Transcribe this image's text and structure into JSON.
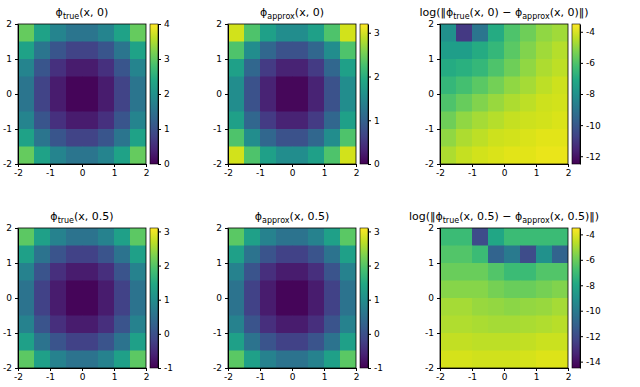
{
  "chart_data": [
    {
      "type": "heatmap",
      "title": [
        "ϕ",
        "true",
        "(x, 0)"
      ],
      "color": "viridis",
      "x": [
        -1.75,
        -1.25,
        -0.75,
        -0.25,
        0.25,
        0.75,
        1.25,
        1.75
      ],
      "y": [
        1.75,
        1.25,
        0.75,
        0.25,
        -0.25,
        -0.75,
        -1.25,
        -1.75
      ],
      "cells": [
        [
          3.06,
          2.31,
          1.81,
          1.56,
          1.56,
          1.81,
          2.31,
          3.06
        ],
        [
          2.31,
          1.56,
          1.06,
          0.81,
          0.81,
          1.06,
          1.56,
          2.31
        ],
        [
          1.81,
          1.06,
          0.56,
          0.31,
          0.31,
          0.56,
          1.06,
          1.81
        ],
        [
          1.56,
          0.81,
          0.31,
          0.06,
          0.06,
          0.31,
          0.81,
          1.56
        ],
        [
          1.56,
          0.81,
          0.31,
          0.06,
          0.06,
          0.31,
          0.81,
          1.56
        ],
        [
          1.81,
          1.06,
          0.56,
          0.31,
          0.31,
          0.56,
          1.06,
          1.81
        ],
        [
          2.31,
          1.56,
          1.06,
          0.81,
          0.81,
          1.06,
          1.56,
          2.31
        ],
        [
          3.06,
          2.31,
          1.81,
          1.56,
          1.56,
          1.81,
          2.31,
          3.06
        ]
      ],
      "xlim": [
        -2,
        2
      ],
      "ylim": [
        -2,
        2
      ],
      "xticks": [
        -2,
        -1,
        0,
        1,
        2
      ],
      "yticks": [
        -2,
        -1,
        0,
        1,
        2
      ],
      "colorbar": {
        "range": [
          0,
          4
        ],
        "ticks": [
          0,
          1,
          2,
          3,
          4
        ]
      }
    },
    {
      "type": "heatmap",
      "title": [
        "ϕ",
        "approx",
        "(x, 0)"
      ],
      "color": "viridis",
      "x": [
        -1.75,
        -1.25,
        -0.75,
        -0.25,
        0.25,
        0.75,
        1.25,
        1.75
      ],
      "y": [
        1.75,
        1.25,
        0.75,
        0.25,
        -0.25,
        -0.75,
        -1.25,
        -1.75
      ],
      "cells": [
        [
          2.98,
          2.3,
          1.8,
          1.55,
          1.55,
          1.8,
          2.3,
          2.98
        ],
        [
          2.3,
          1.56,
          1.06,
          0.81,
          0.81,
          1.06,
          1.56,
          2.3
        ],
        [
          1.8,
          1.06,
          0.56,
          0.31,
          0.31,
          0.56,
          1.06,
          1.8
        ],
        [
          1.55,
          0.81,
          0.31,
          0.06,
          0.06,
          0.31,
          0.81,
          1.55
        ],
        [
          1.55,
          0.81,
          0.31,
          0.06,
          0.06,
          0.31,
          0.81,
          1.55
        ],
        [
          1.8,
          1.06,
          0.56,
          0.31,
          0.31,
          0.56,
          1.06,
          1.8
        ],
        [
          2.3,
          1.56,
          1.06,
          0.81,
          0.81,
          1.06,
          1.56,
          2.3
        ],
        [
          2.98,
          2.3,
          1.8,
          1.55,
          1.55,
          1.8,
          2.3,
          2.98
        ]
      ],
      "xlim": [
        -2,
        2
      ],
      "ylim": [
        -2,
        2
      ],
      "xticks": [
        -2,
        -1,
        0,
        1,
        2
      ],
      "yticks": [
        -2,
        -1,
        0,
        1,
        2
      ],
      "colorbar": {
        "range": [
          0,
          3.2
        ],
        "ticks": [
          0,
          1,
          2,
          3
        ]
      }
    },
    {
      "type": "heatmap",
      "title": [
        "log(‖ϕ",
        "true",
        "(x, 0) − ϕ",
        "approx",
        "(x, 0)‖)"
      ],
      "color": "viridis",
      "x": [
        -1.75,
        -1.25,
        -0.75,
        -0.25,
        0.25,
        0.75,
        1.25,
        1.75
      ],
      "y": [
        1.75,
        1.25,
        0.75,
        0.25,
        -0.25,
        -0.75,
        -1.25,
        -1.75
      ],
      "cells": [
        [
          -8,
          -11,
          -9,
          -7,
          -6,
          -5.5,
          -5,
          -4.8
        ],
        [
          -7.5,
          -7.5,
          -7,
          -6.5,
          -5.8,
          -5.2,
          -4.8,
          -4.5
        ],
        [
          -7,
          -6.8,
          -6.5,
          -6,
          -5.5,
          -5,
          -4.6,
          -4.4
        ],
        [
          -6.5,
          -6.2,
          -5.8,
          -5.4,
          -5,
          -4.7,
          -4.4,
          -4.2
        ],
        [
          -6,
          -5.6,
          -5.2,
          -4.9,
          -4.6,
          -4.4,
          -4.2,
          -4.1
        ],
        [
          -5.5,
          -5,
          -4.7,
          -4.5,
          -4.3,
          -4.2,
          -4.1,
          -4
        ],
        [
          -5,
          -4.6,
          -4.4,
          -4.2,
          -4.1,
          -4,
          -3.9,
          -3.9
        ],
        [
          -4.6,
          -4.3,
          -4.1,
          -4,
          -3.9,
          -3.9,
          -3.8,
          -3.8
        ]
      ],
      "xlim": [
        -2,
        2
      ],
      "ylim": [
        -2,
        2
      ],
      "xticks": [
        -2,
        -1,
        0,
        1,
        2
      ],
      "yticks": [
        -2,
        -1,
        0,
        1,
        2
      ],
      "colorbar": {
        "range": [
          -12.5,
          -3.5
        ],
        "ticks": [
          -4,
          -6,
          -8,
          -10,
          -12
        ]
      }
    },
    {
      "type": "heatmap",
      "title": [
        "ϕ",
        "true",
        "(x, 0.5)"
      ],
      "color": "viridis",
      "x": [
        -1.75,
        -1.25,
        -0.75,
        -0.25,
        0.25,
        0.75,
        1.25,
        1.75
      ],
      "y": [
        1.75,
        1.25,
        0.75,
        0.25,
        -0.25,
        -0.75,
        -1.25,
        -1.75
      ],
      "cells": [
        [
          2.06,
          1.31,
          0.81,
          0.56,
          0.56,
          0.81,
          1.31,
          2.06
        ],
        [
          1.31,
          0.56,
          0.06,
          -0.19,
          -0.19,
          0.06,
          0.56,
          1.31
        ],
        [
          0.81,
          0.06,
          -0.44,
          -0.69,
          -0.69,
          -0.44,
          0.06,
          0.81
        ],
        [
          0.56,
          -0.19,
          -0.69,
          -0.94,
          -0.94,
          -0.69,
          -0.19,
          0.56
        ],
        [
          0.56,
          -0.19,
          -0.69,
          -0.94,
          -0.94,
          -0.69,
          -0.19,
          0.56
        ],
        [
          0.81,
          0.06,
          -0.44,
          -0.69,
          -0.69,
          -0.44,
          0.06,
          0.81
        ],
        [
          1.31,
          0.56,
          0.06,
          -0.19,
          -0.19,
          0.06,
          0.56,
          1.31
        ],
        [
          2.06,
          1.31,
          0.81,
          0.56,
          0.56,
          0.81,
          1.31,
          2.06
        ]
      ],
      "xlim": [
        -2,
        2
      ],
      "ylim": [
        -2,
        2
      ],
      "xticks": [
        -2,
        -1,
        0,
        1,
        2
      ],
      "yticks": [
        -2,
        -1,
        0,
        1,
        2
      ],
      "colorbar": {
        "range": [
          -1,
          3.1
        ],
        "ticks": [
          -1,
          0,
          1,
          2,
          3
        ]
      }
    },
    {
      "type": "heatmap",
      "title": [
        "ϕ",
        "approx",
        "(x, 0.5)"
      ],
      "color": "viridis",
      "x": [
        -1.75,
        -1.25,
        -0.75,
        -0.25,
        0.25,
        0.75,
        1.25,
        1.75
      ],
      "y": [
        1.75,
        1.25,
        0.75,
        0.25,
        -0.25,
        -0.75,
        -1.25,
        -1.75
      ],
      "cells": [
        [
          2.05,
          1.31,
          0.81,
          0.56,
          0.56,
          0.81,
          1.31,
          2.05
        ],
        [
          1.31,
          0.56,
          0.06,
          -0.19,
          -0.19,
          0.06,
          0.56,
          1.31
        ],
        [
          0.81,
          0.06,
          -0.44,
          -0.69,
          -0.69,
          -0.44,
          0.06,
          0.81
        ],
        [
          0.56,
          -0.19,
          -0.69,
          -0.94,
          -0.94,
          -0.69,
          -0.19,
          0.56
        ],
        [
          0.56,
          -0.19,
          -0.69,
          -0.94,
          -0.94,
          -0.69,
          -0.19,
          0.56
        ],
        [
          0.81,
          0.06,
          -0.44,
          -0.69,
          -0.69,
          -0.44,
          0.06,
          0.81
        ],
        [
          1.31,
          0.56,
          0.06,
          -0.19,
          -0.19,
          0.06,
          0.56,
          1.31
        ],
        [
          2.05,
          1.31,
          0.81,
          0.56,
          0.56,
          0.81,
          1.31,
          2.05
        ]
      ],
      "xlim": [
        -2,
        2
      ],
      "ylim": [
        -2,
        2
      ],
      "xticks": [
        -2,
        -1,
        0,
        1,
        2
      ],
      "yticks": [
        -2,
        -1,
        0,
        1,
        2
      ],
      "colorbar": {
        "range": [
          -1,
          3.1
        ],
        "ticks": [
          -1,
          0,
          1,
          2,
          3
        ]
      }
    },
    {
      "type": "heatmap",
      "title": [
        "log(‖ϕ",
        "true",
        "(x, 0.5) − ϕ",
        "approx",
        "(x, 0.5)‖)"
      ],
      "color": "viridis",
      "x": [
        -1.75,
        -1.25,
        -0.75,
        -0.25,
        0.25,
        0.75,
        1.25,
        1.75
      ],
      "y": [
        1.75,
        1.25,
        0.75,
        0.25,
        -0.25,
        -0.75,
        -1.25,
        -1.75
      ],
      "cells": [
        [
          -7,
          -7,
          -12,
          -8,
          -7,
          -7,
          -7,
          -7
        ],
        [
          -6.5,
          -6.5,
          -7,
          -11,
          -10,
          -12,
          -9,
          -11
        ],
        [
          -6,
          -6,
          -6,
          -6.5,
          -7,
          -7,
          -6.5,
          -6.5
        ],
        [
          -5.5,
          -5.5,
          -5.5,
          -5.8,
          -6,
          -6,
          -5.8,
          -5.6
        ],
        [
          -5,
          -5,
          -5.2,
          -5.3,
          -5.4,
          -5.3,
          -5.2,
          -5
        ],
        [
          -4.8,
          -4.8,
          -4.9,
          -5,
          -5,
          -4.9,
          -4.8,
          -4.7
        ],
        [
          -4.5,
          -4.5,
          -4.6,
          -4.6,
          -4.6,
          -4.5,
          -4.4,
          -4.4
        ],
        [
          -4.2,
          -4.2,
          -4.3,
          -4.3,
          -4.3,
          -4.2,
          -4.1,
          -4.1
        ]
      ],
      "xlim": [
        -2,
        2
      ],
      "ylim": [
        -2,
        2
      ],
      "xticks": [
        -2,
        -1,
        0,
        1,
        2
      ],
      "yticks": [
        -2,
        -1,
        0,
        1,
        2
      ],
      "colorbar": {
        "range": [
          -14.5,
          -3.5
        ],
        "ticks": [
          -4,
          -6,
          -8,
          -10,
          -12,
          -14
        ]
      }
    }
  ]
}
